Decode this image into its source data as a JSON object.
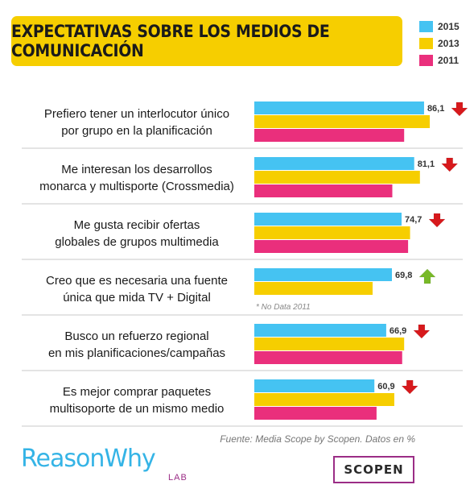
{
  "chart_data": {
    "type": "bar",
    "title": "EXPECTATIVAS SOBRE LOS MEDIOS DE COMUNICACIÓN",
    "categories": [
      [
        "Prefiero tener un interlocutor único",
        "por grupo en la planificación"
      ],
      [
        "Me interesan los desarrollos",
        "monarca y multisporte (Crossmedia)"
      ],
      [
        "Me gusta recibir ofertas",
        "globales de grupos multimedia"
      ],
      [
        "Creo que es necesaria una fuente",
        "única que mida TV + Digital"
      ],
      [
        "Busco un refuerzo regional",
        "en mis planificaciones/campañas"
      ],
      [
        "Es mejor comprar paquetes",
        "multisoporte de un mismo medio"
      ]
    ],
    "series": [
      {
        "name": "2015",
        "color": "#45c3f2",
        "values": [
          86.1,
          81.1,
          74.7,
          69.8,
          66.9,
          60.9
        ]
      },
      {
        "name": "2013",
        "color": "#f6ce00",
        "values": [
          89,
          84,
          79,
          60,
          76,
          71
        ]
      },
      {
        "name": "2011",
        "color": "#ea2f7c",
        "values": [
          76,
          70,
          78,
          null,
          75,
          62
        ]
      }
    ],
    "value_labels": [
      "86,1",
      "81,1",
      "74,7",
      "69,8",
      "66,9",
      "60,9"
    ],
    "trend": [
      "down",
      "down",
      "down",
      "up",
      "down",
      "down"
    ],
    "notes": [
      null,
      null,
      null,
      "* No Data 2011",
      null,
      null
    ],
    "xlim": [
      0,
      100
    ],
    "legend_position": "top-right",
    "trend_colors": {
      "down": "#d7191c",
      "up": "#78b928"
    }
  },
  "source": "Fuente: Media Scope by Scopen. Datos en %",
  "brand": {
    "name": "ReasonWhy",
    "sub": "LAB"
  },
  "partner": "SCOPEN"
}
